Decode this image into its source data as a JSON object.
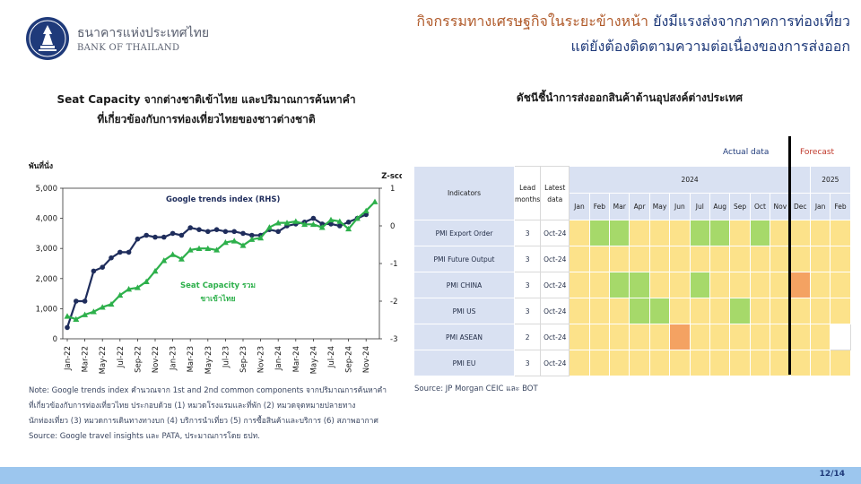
{
  "header": {
    "bank_name_th": "ธนาคารแห่งประเทศไทย",
    "bank_name_en": "BANK OF THAILAND",
    "headline_1a": "กิจกรรมทางเศรษฐกิจในระยะข้างหน้า",
    "headline_1b": "ยังมีแรงส่งจากภาคการท่องเที่ยว",
    "headline_2": "แต่ยังต้องติดตามความต่อเนื่องของการส่งออก"
  },
  "left_chart": {
    "title_line1": "Seat Capacity จากต่างชาติเข้าไทย และปริมาณการค้นหาคำ",
    "title_line2": "ที่เกี่ยวข้องกับการท่องเที่ยวไทยของชาวต่างชาติ",
    "note_line1": "Note: Google trends index คำนวณจาก 1st and 2nd  common components จากปริมาณการค้นหาคำ",
    "note_line2": "ที่เกี่ยวข้องกับการท่องเที่ยวไทย ประกอบด้วย (1) หมวดโรงแรมและที่พัก (2) หมวดจุดหมายปลายทาง",
    "note_line3": "นักท่องเที่ยว (3) หมวดการเดินทางทางบก (4) บริการนำเที่ยว (5) การซื้อสินค้าและบริการ (6) สภาพอากาศ",
    "note_line4": "Source: Google travel insights และ PATA, ประมาณการโดย ธปท."
  },
  "chart_data": {
    "type": "line",
    "ylabel": "พันที่นั่ง",
    "y2label": "Z-score",
    "ylim": [
      0,
      5000
    ],
    "y_ticks": [
      "0",
      "1,000",
      "2,000",
      "3,000",
      "4,000",
      "5,000"
    ],
    "y2lim": [
      -3,
      1
    ],
    "y2_ticks": [
      "-3",
      "-2",
      "-1",
      "0",
      "1"
    ],
    "x_tick_labels": [
      "Jan-22",
      "Mar-22",
      "May-22",
      "Jul-22",
      "Sep-22",
      "Nov-22",
      "Jan-23",
      "Mar-23",
      "May-23",
      "Jul-23",
      "Sep-23",
      "Nov-23",
      "Jan-24",
      "Mar-24",
      "May-24",
      "Jul-24",
      "Sep-24",
      "Nov-24"
    ],
    "x": [
      "Jan-22",
      "Feb-22",
      "Mar-22",
      "Apr-22",
      "May-22",
      "Jun-22",
      "Jul-22",
      "Aug-22",
      "Sep-22",
      "Oct-22",
      "Nov-22",
      "Dec-22",
      "Jan-23",
      "Feb-23",
      "Mar-23",
      "Apr-23",
      "May-23",
      "Jun-23",
      "Jul-23",
      "Aug-23",
      "Sep-23",
      "Oct-23",
      "Nov-23",
      "Dec-23",
      "Jan-24",
      "Feb-24",
      "Mar-24",
      "Apr-24",
      "May-24",
      "Jun-24",
      "Jul-24",
      "Aug-24",
      "Sep-24",
      "Oct-24",
      "Nov-24",
      "Dec-24"
    ],
    "series": [
      {
        "name": "Google trends index (RHS)",
        "axis": "right",
        "color": "#1f2d5c",
        "marker": "circle",
        "values": [
          -2.7,
          -2.0,
          -2.0,
          -1.2,
          -1.1,
          -0.85,
          -0.7,
          -0.7,
          -0.35,
          -0.25,
          -0.3,
          -0.3,
          -0.2,
          -0.25,
          -0.05,
          -0.1,
          -0.15,
          -0.1,
          -0.15,
          -0.15,
          -0.2,
          -0.25,
          -0.25,
          -0.1,
          -0.15,
          -0.0,
          0.05,
          0.1,
          0.2,
          0.05,
          0.05,
          0.0,
          0.1,
          0.2,
          0.3,
          null
        ]
      },
      {
        "name": "Seat Capacity รวมขาเข้าไทย",
        "axis": "left",
        "color": "#2db04b",
        "marker": "triangle",
        "values": [
          750,
          650,
          800,
          900,
          1050,
          1150,
          1450,
          1650,
          1700,
          1900,
          2250,
          2600,
          2800,
          2650,
          2950,
          3000,
          3000,
          2950,
          3200,
          3250,
          3100,
          3300,
          3350,
          3700,
          3850,
          3850,
          3900,
          3800,
          3800,
          3700,
          3950,
          3900,
          3650,
          4000,
          4250,
          4550
        ]
      }
    ],
    "annotations": [
      "Google trends index (RHS)",
      "Seat Capacity รวม",
      "ขาเข้าไทย"
    ]
  },
  "right_panel": {
    "title": "ดัชนีชี้นำการส่งออกสินค้าด้านอุปสงค์ต่างประเทศ",
    "source": "Source: JP Morgan CEIC และ BOT",
    "legend_actual": "Actual data",
    "legend_forecast": "Forecast",
    "col_indicators": "Indicators",
    "col_lead": "Lead months",
    "col_lead_l1": "Lead",
    "col_lead_l2": "months",
    "col_latest_l1": "Latest",
    "col_latest_l2": "data",
    "year_2024": "2024",
    "year_2025": "2025",
    "months": [
      "Jan",
      "Feb",
      "Mar",
      "Apr",
      "May",
      "Jun",
      "Jul",
      "Aug",
      "Sep",
      "Oct",
      "Nov",
      "Dec",
      "Jan",
      "Feb"
    ],
    "rows": [
      {
        "name": "PMI Export Order",
        "lead": "3",
        "latest": "Oct-24",
        "cells": [
          "y",
          "g",
          "g",
          "y",
          "y",
          "y",
          "g",
          "g",
          "y",
          "g",
          "y",
          "y",
          "y",
          "y"
        ]
      },
      {
        "name": "PMI Future Output",
        "lead": "3",
        "latest": "Oct-24",
        "cells": [
          "y",
          "y",
          "y",
          "y",
          "y",
          "y",
          "y",
          "y",
          "y",
          "y",
          "y",
          "y",
          "y",
          "y"
        ]
      },
      {
        "name": "PMI CHINA",
        "lead": "3",
        "latest": "Oct-24",
        "cells": [
          "y",
          "y",
          "g",
          "g",
          "y",
          "y",
          "g",
          "y",
          "y",
          "y",
          "y",
          "o",
          "y",
          "y"
        ]
      },
      {
        "name": "PMI US",
        "lead": "3",
        "latest": "Oct-24",
        "cells": [
          "y",
          "y",
          "y",
          "g",
          "g",
          "y",
          "y",
          "y",
          "g",
          "y",
          "y",
          "y",
          "y",
          "y"
        ]
      },
      {
        "name": "PMI ASEAN",
        "lead": "2",
        "latest": "Oct-24",
        "cells": [
          "y",
          "y",
          "y",
          "y",
          "y",
          "o",
          "y",
          "y",
          "y",
          "y",
          "y",
          "y",
          "y",
          "w"
        ]
      },
      {
        "name": "PMI EU",
        "lead": "3",
        "latest": "Oct-24",
        "cells": [
          "y",
          "y",
          "y",
          "y",
          "y",
          "y",
          "y",
          "y",
          "y",
          "y",
          "y",
          "y",
          "y",
          "y"
        ]
      }
    ],
    "colors": {
      "y": "#fce28a",
      "g": "#a6d96a",
      "o": "#f4a262",
      "w": "#ffffff"
    }
  },
  "footer": {
    "page": "12/14"
  }
}
